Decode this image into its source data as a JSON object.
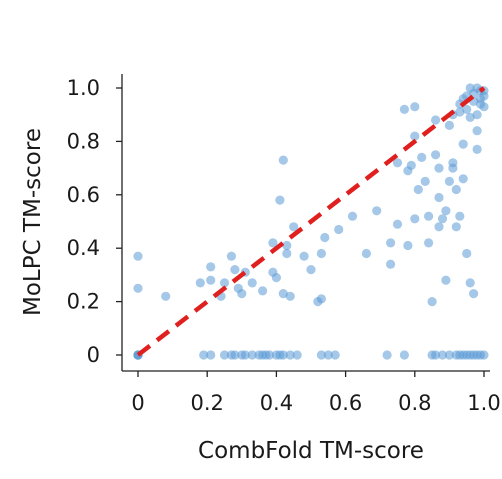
{
  "chart_data": {
    "type": "scatter",
    "title": "",
    "xlabel": "CombFold TM-score",
    "ylabel": "MoLPC TM-score",
    "xlim": [
      0,
      1.0
    ],
    "ylim": [
      0,
      1.0
    ],
    "x_ticks": [
      {
        "value": 0,
        "label": "0"
      },
      {
        "value": 0.2,
        "label": "0.2"
      },
      {
        "value": 0.4,
        "label": "0.4"
      },
      {
        "value": 0.6,
        "label": "0.6"
      },
      {
        "value": 0.8,
        "label": "0.8"
      },
      {
        "value": 1.0,
        "label": "1.0"
      }
    ],
    "y_ticks": [
      {
        "value": 0,
        "label": "0"
      },
      {
        "value": 0.2,
        "label": "0.2"
      },
      {
        "value": 0.4,
        "label": "0.4"
      },
      {
        "value": 0.6,
        "label": "0.6"
      },
      {
        "value": 0.8,
        "label": "0.8"
      },
      {
        "value": 1.0,
        "label": "1.0"
      }
    ],
    "grid": false,
    "legend": "none",
    "point_color": "#5b9bd5",
    "reference_line": {
      "from": [
        0,
        0
      ],
      "to": [
        1.0,
        1.0
      ],
      "color": "#e01f1f",
      "style": "dashed"
    },
    "series": [
      {
        "points": [
          [
            0.0,
            0.0
          ],
          [
            0.0,
            0.0
          ],
          [
            0.0,
            0.0
          ],
          [
            0.0,
            0.0
          ],
          [
            0.0,
            0.25
          ],
          [
            0.0,
            0.37
          ],
          [
            0.08,
            0.22
          ],
          [
            0.18,
            0.27
          ],
          [
            0.21,
            0.28
          ],
          [
            0.21,
            0.33
          ],
          [
            0.24,
            0.22
          ],
          [
            0.25,
            0.27
          ],
          [
            0.27,
            0.37
          ],
          [
            0.28,
            0.32
          ],
          [
            0.29,
            0.25
          ],
          [
            0.3,
            0.23
          ],
          [
            0.31,
            0.31
          ],
          [
            0.33,
            0.27
          ],
          [
            0.36,
            0.24
          ],
          [
            0.39,
            0.31
          ],
          [
            0.4,
            0.29
          ],
          [
            0.39,
            0.42
          ],
          [
            0.42,
            0.23
          ],
          [
            0.44,
            0.22
          ],
          [
            0.43,
            0.38
          ],
          [
            0.43,
            0.41
          ],
          [
            0.41,
            0.58
          ],
          [
            0.42,
            0.73
          ],
          [
            0.45,
            0.48
          ],
          [
            0.48,
            0.37
          ],
          [
            0.5,
            0.32
          ],
          [
            0.52,
            0.2
          ],
          [
            0.53,
            0.21
          ],
          [
            0.53,
            0.38
          ],
          [
            0.54,
            0.44
          ],
          [
            0.58,
            0.47
          ],
          [
            0.62,
            0.52
          ],
          [
            0.66,
            0.38
          ],
          [
            0.69,
            0.54
          ],
          [
            0.73,
            0.34
          ],
          [
            0.73,
            0.42
          ],
          [
            0.75,
            0.49
          ],
          [
            0.75,
            0.72
          ],
          [
            0.77,
            0.92
          ],
          [
            0.78,
            0.69
          ],
          [
            0.78,
            0.41
          ],
          [
            0.79,
            0.71
          ],
          [
            0.8,
            0.82
          ],
          [
            0.8,
            0.93
          ],
          [
            0.8,
            0.51
          ],
          [
            0.81,
            0.62
          ],
          [
            0.82,
            0.74
          ],
          [
            0.83,
            0.65
          ],
          [
            0.84,
            0.42
          ],
          [
            0.84,
            0.52
          ],
          [
            0.85,
            0.2
          ],
          [
            0.86,
            0.75
          ],
          [
            0.86,
            0.88
          ],
          [
            0.87,
            0.48
          ],
          [
            0.87,
            0.59
          ],
          [
            0.87,
            0.7
          ],
          [
            0.88,
            0.51
          ],
          [
            0.89,
            0.28
          ],
          [
            0.89,
            0.54
          ],
          [
            0.9,
            0.65
          ],
          [
            0.9,
            0.86
          ],
          [
            0.91,
            0.9
          ],
          [
            0.91,
            0.72
          ],
          [
            0.91,
            0.7
          ],
          [
            0.92,
            0.48
          ],
          [
            0.92,
            0.62
          ],
          [
            0.93,
            0.91
          ],
          [
            0.93,
            0.52
          ],
          [
            0.93,
            0.94
          ],
          [
            0.94,
            0.96
          ],
          [
            0.94,
            0.79
          ],
          [
            0.94,
            0.66
          ],
          [
            0.95,
            0.92
          ],
          [
            0.95,
            0.97
          ],
          [
            0.95,
            0.38
          ],
          [
            0.96,
            0.89
          ],
          [
            0.96,
            1.0
          ],
          [
            0.96,
            0.27
          ],
          [
            0.97,
            0.95
          ],
          [
            0.97,
            0.98
          ],
          [
            0.97,
            0.23
          ],
          [
            0.98,
            0.9
          ],
          [
            0.98,
            0.77
          ],
          [
            0.98,
            0.84
          ],
          [
            0.98,
            1.0
          ],
          [
            0.99,
            0.96
          ],
          [
            0.99,
            0.99
          ],
          [
            0.99,
            0.94
          ],
          [
            1.0,
            0.99
          ],
          [
            1.0,
            0.97
          ],
          [
            1.0,
            0.93
          ],
          [
            0.19,
            0.0
          ],
          [
            0.21,
            0.0
          ],
          [
            0.25,
            0.0
          ],
          [
            0.27,
            0.0
          ],
          [
            0.28,
            0.0
          ],
          [
            0.3,
            0.0
          ],
          [
            0.31,
            0.0
          ],
          [
            0.33,
            0.0
          ],
          [
            0.35,
            0.0
          ],
          [
            0.36,
            0.0
          ],
          [
            0.37,
            0.0
          ],
          [
            0.38,
            0.0
          ],
          [
            0.4,
            0.0
          ],
          [
            0.41,
            0.0
          ],
          [
            0.42,
            0.0
          ],
          [
            0.44,
            0.0
          ],
          [
            0.46,
            0.0
          ],
          [
            0.53,
            0.0
          ],
          [
            0.55,
            0.0
          ],
          [
            0.57,
            0.0
          ],
          [
            0.72,
            0.0
          ],
          [
            0.77,
            0.0
          ],
          [
            0.85,
            0.0
          ],
          [
            0.86,
            0.0
          ],
          [
            0.88,
            0.0
          ],
          [
            0.9,
            0.0
          ],
          [
            0.92,
            0.0
          ],
          [
            0.93,
            0.0
          ],
          [
            0.94,
            0.0
          ],
          [
            0.95,
            0.0
          ],
          [
            0.96,
            0.0
          ],
          [
            0.97,
            0.0
          ],
          [
            0.98,
            0.0
          ],
          [
            0.99,
            0.0
          ],
          [
            1.0,
            0.0
          ]
        ]
      }
    ]
  }
}
